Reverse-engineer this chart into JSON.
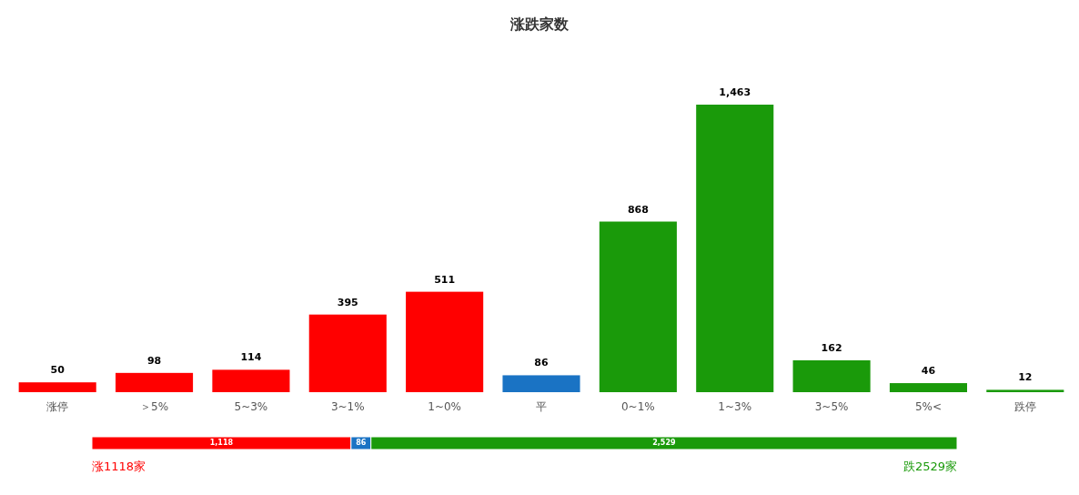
{
  "chart_data": [
    {
      "type": "bar",
      "title": "涨跌家数",
      "categories": [
        "涨停",
        "＞5%",
        "5~3%",
        "3~1%",
        "1~0%",
        "平",
        "0~1%",
        "1~3%",
        "3~5%",
        "5%<",
        "跌停"
      ],
      "values": [
        50,
        98,
        114,
        395,
        511,
        86,
        868,
        1463,
        162,
        46,
        12
      ],
      "colors": [
        "#ff0000",
        "#ff0000",
        "#ff0000",
        "#ff0000",
        "#ff0000",
        "#1a73c4",
        "#1a9a0a",
        "#1a9a0a",
        "#1a9a0a",
        "#1a9a0a",
        "#1a9a0a"
      ],
      "value_labels": [
        "50",
        "98",
        "114",
        "395",
        "511",
        "86",
        "868",
        "1,463",
        "162",
        "46",
        "12"
      ]
    },
    {
      "type": "bar",
      "orientation": "horizontal",
      "stacked": true,
      "categories": [
        null
      ],
      "series": [
        {
          "color": "#ff0000",
          "values": [
            1118
          ],
          "value_labels": [
            "1,118"
          ]
        },
        {
          "color": "#1a73c4",
          "values": [
            86
          ],
          "value_labels": [
            "86"
          ]
        },
        {
          "color": "#1a9a0a",
          "values": [
            2529
          ],
          "value_labels": [
            "2,529"
          ]
        }
      ],
      "annotations": [
        "涨1118家",
        "跌2529家"
      ]
    }
  ]
}
